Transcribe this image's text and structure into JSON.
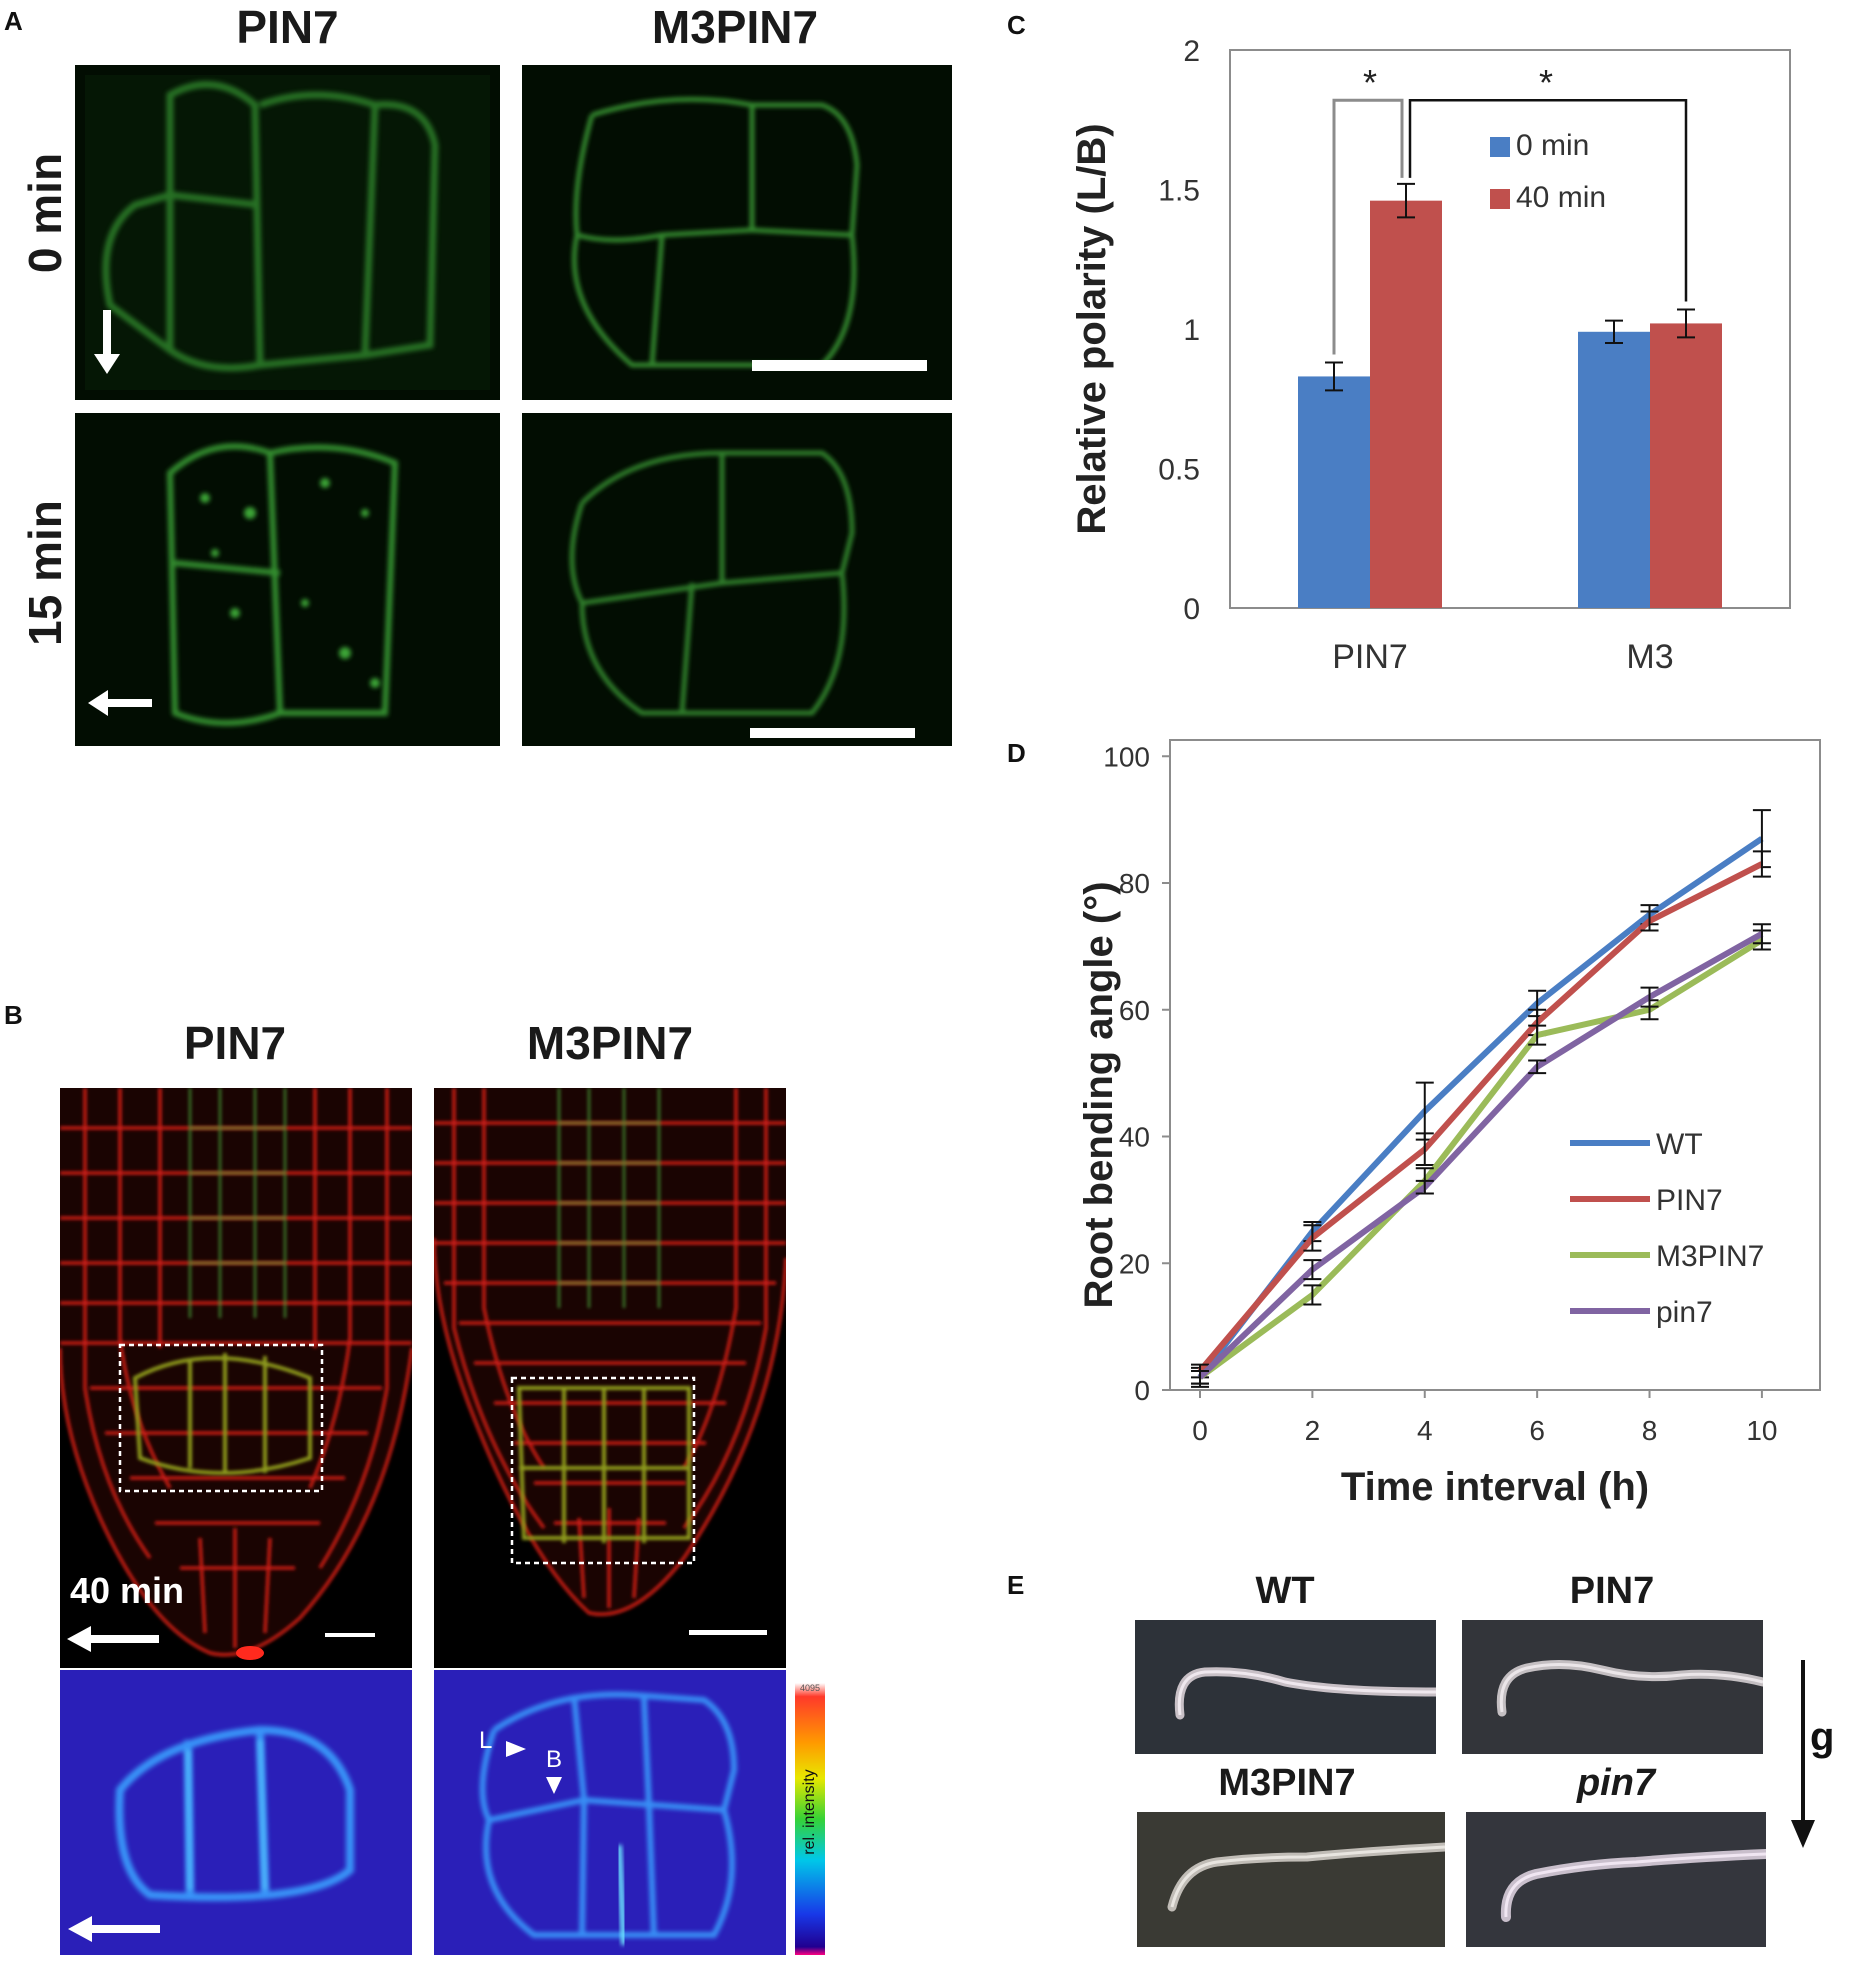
{
  "panels": {
    "a": {
      "label": "A",
      "col1": "PIN7",
      "col2": "M3PIN7",
      "row1": "0 min",
      "row2": "15 min"
    },
    "b": {
      "label": "B",
      "col1": "PIN7",
      "col2": "M3PIN7",
      "time": "40 min",
      "heat_L": "L",
      "heat_B": "B",
      "colorbar_label": "rel. intensity",
      "colorbar_max": "4095"
    },
    "c": {
      "label": "C"
    },
    "d": {
      "label": "D"
    },
    "e": {
      "label": "E",
      "titles": [
        "WT",
        "PIN7",
        "M3PIN7",
        "pin7"
      ],
      "gravity": "g"
    }
  },
  "chart_data": [
    {
      "id": "C",
      "type": "bar",
      "categories": [
        "PIN7",
        "M3"
      ],
      "series": [
        {
          "name": "0 min",
          "color": "#4a7ec4",
          "values": [
            0.83,
            0.99
          ],
          "errors": [
            0.05,
            0.04
          ]
        },
        {
          "name": "40 min",
          "color": "#c0504d",
          "values": [
            1.46,
            1.02
          ],
          "errors": [
            0.06,
            0.05
          ]
        }
      ],
      "ylabel": "Relative polarity (L/B)",
      "ylim": [
        0,
        2
      ],
      "yticks": [
        "0",
        "0.5",
        "1",
        "1.5",
        "2"
      ],
      "significance": [
        "*",
        "*"
      ],
      "legend": "top-right"
    },
    {
      "id": "D",
      "type": "line",
      "x": [
        0,
        2,
        4,
        6,
        8,
        10
      ],
      "xticks": [
        "0",
        "2",
        "4",
        "6",
        "8",
        "10"
      ],
      "series": [
        {
          "name": "WT",
          "color": "#4a7ec4",
          "values": [
            2,
            25,
            44,
            61,
            75,
            87
          ],
          "errors": [
            1.5,
            1.5,
            4.5,
            2,
            1.5,
            4.5
          ]
        },
        {
          "name": "PIN7",
          "color": "#c0504d",
          "values": [
            3,
            24,
            38,
            58,
            74,
            83
          ],
          "errors": [
            1,
            2,
            2.5,
            2,
            1.5,
            2
          ]
        },
        {
          "name": "M3PIN7",
          "color": "#9bbb59",
          "values": [
            2,
            15,
            33,
            56,
            60,
            71
          ],
          "errors": [
            1,
            1.5,
            2,
            1.5,
            1.5,
            1.5
          ]
        },
        {
          "name": "pin7",
          "color": "#8064a2",
          "values": [
            2,
            19,
            32,
            51,
            62,
            72
          ],
          "errors": [
            1,
            1.5,
            1,
            1,
            1.5,
            1.5
          ]
        }
      ],
      "xlabel": "Time interval (h)",
      "ylabel": "Root bending angle (°)",
      "ylim": [
        0,
        100
      ],
      "yticks": [
        "0",
        "20",
        "40",
        "60",
        "80",
        "100"
      ],
      "legend": "right"
    }
  ]
}
